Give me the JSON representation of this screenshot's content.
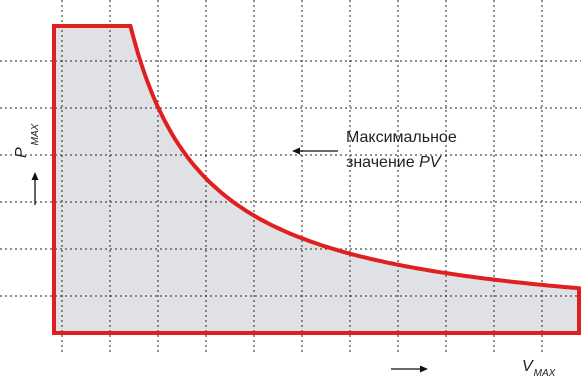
{
  "chart_data": {
    "type": "area",
    "title": "",
    "xlabel": "V",
    "xlabel_sub": "MAX",
    "ylabel": "P",
    "ylabel_sub": "MAX",
    "annotation_line1": "Максимальное",
    "annotation_line2_prefix": "значение ",
    "annotation_line2_italic": "PV",
    "grid": true,
    "grid_style": "dotted",
    "xlim": [
      0,
      11
    ],
    "ylim": [
      0,
      7
    ],
    "fill_color": "#dfe1e4",
    "line_color": "#e02020",
    "curve": {
      "description_note": null,
      "plateau_y": 6.8,
      "plateau_x_end": 1.6,
      "pv_constant": 10.9
    },
    "outline_points_data_units": [
      [
        0,
        0
      ],
      [
        0,
        6.8
      ],
      [
        1.6,
        6.8
      ],
      [
        11,
        1.0
      ],
      [
        11,
        0
      ]
    ]
  }
}
